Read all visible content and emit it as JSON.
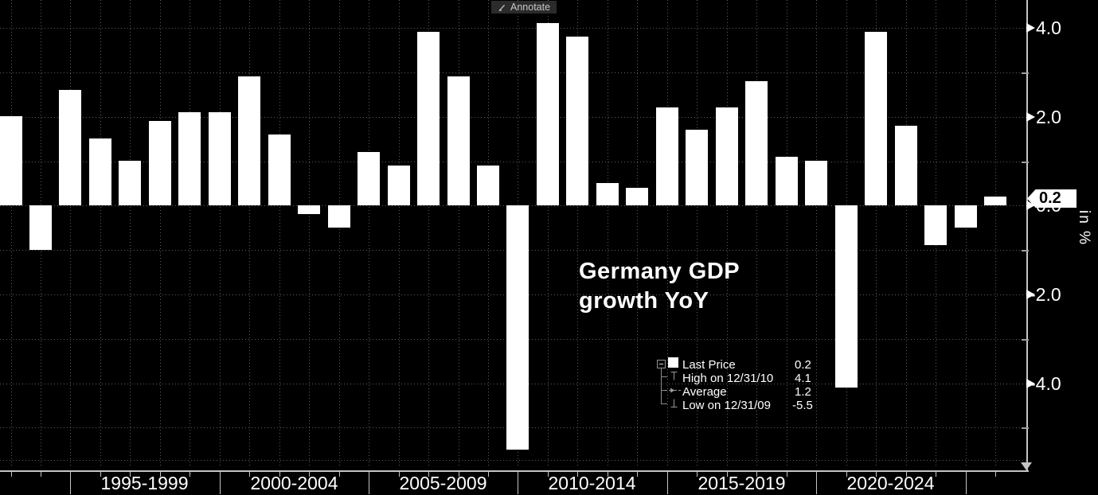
{
  "toolbar": {
    "annotate_label": "Annotate"
  },
  "title": {
    "line1": "Germany GDP",
    "line2": "growth YoY"
  },
  "legend": {
    "rows": [
      {
        "label": "Last Price",
        "value": "0.2"
      },
      {
        "label": "High on 12/31/10",
        "value": "4.1"
      },
      {
        "label": "Average",
        "value": "1.2"
      },
      {
        "label": "Low on 12/31/09",
        "value": "-5.5"
      }
    ]
  },
  "y_axis": {
    "unit_label": "in %",
    "major_ticks": [
      {
        "value": 4,
        "label": "4.0"
      },
      {
        "value": 2,
        "label": "2.0"
      },
      {
        "value": 0,
        "label": "0.0"
      },
      {
        "value": -2,
        "label": "-2.0"
      },
      {
        "value": -4,
        "label": "-4.0"
      }
    ],
    "minor_tick_values": [
      3,
      1,
      -1,
      -3,
      -5
    ],
    "last_price_flag": {
      "value": 0.2,
      "label": "0.2"
    }
  },
  "x_axis": {
    "group_labels": [
      "1995-1999",
      "2000-2004",
      "2005-2009",
      "2010-2014",
      "2015-2019",
      "2020-2024"
    ]
  },
  "chart_data": {
    "type": "bar",
    "title": "Germany GDP growth YoY",
    "ylabel": "in %",
    "ylim": [
      -6.0,
      4.6
    ],
    "grid": true,
    "legend_position": "center-right",
    "x": [
      1992,
      1993,
      1994,
      1995,
      1996,
      1997,
      1998,
      1999,
      2000,
      2001,
      2002,
      2003,
      2004,
      2005,
      2006,
      2007,
      2008,
      2009,
      2010,
      2011,
      2012,
      2013,
      2014,
      2015,
      2016,
      2017,
      2018,
      2019,
      2020,
      2021,
      2022,
      2023,
      2024,
      2025
    ],
    "values": [
      2.0,
      -1.0,
      2.6,
      1.5,
      1.0,
      1.9,
      2.1,
      2.1,
      2.9,
      1.6,
      -0.2,
      -0.5,
      1.2,
      0.9,
      3.9,
      2.9,
      0.9,
      -5.5,
      4.1,
      3.8,
      0.5,
      0.4,
      2.2,
      1.7,
      2.2,
      2.8,
      1.1,
      1.0,
      -4.1,
      3.9,
      1.8,
      -0.9,
      -0.5,
      0.2
    ],
    "stats": {
      "last_price": 0.2,
      "high": 4.1,
      "high_date": "12/31/10",
      "average": 1.2,
      "low": -5.5,
      "low_date": "12/31/09"
    }
  },
  "colors": {
    "background": "#000000",
    "bar": "#ffffff",
    "grid_dots": "#5f5f5f",
    "axis": "#c4c4c4",
    "text": "#ffffff",
    "flag_bg": "#ffffff",
    "flag_text": "#000000",
    "annotate_bg": "#2b2b2b",
    "annotate_text": "#c9c9c9",
    "legend_marker": "#9a9a9a"
  }
}
